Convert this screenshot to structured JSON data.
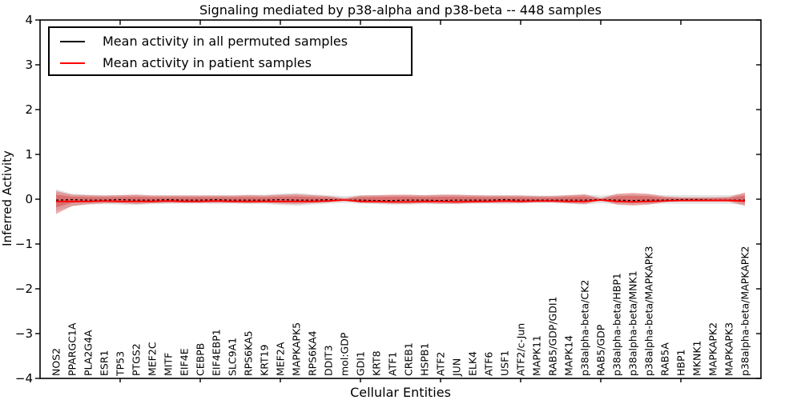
{
  "figure": {
    "title": "Signaling mediated by p38-alpha and p38-beta -- 448 samples",
    "xlabel": "Cellular Entities",
    "ylabel": "Inferred Activity"
  },
  "legend": {
    "entries": [
      {
        "label": "Mean activity in all permuted samples",
        "color": "#000000"
      },
      {
        "label": "Mean activity in patient samples",
        "color": "#ff0000"
      }
    ]
  },
  "chart_data": {
    "type": "line",
    "title": "Signaling mediated by p38-alpha and p38-beta -- 448 samples",
    "xlabel": "Cellular Entities",
    "ylabel": "Inferred Activity",
    "ylim": [
      -4,
      4
    ],
    "xlim": [
      0,
      45
    ],
    "yticks": [
      4,
      3,
      2,
      1,
      0,
      -1,
      -2,
      -3,
      -4
    ],
    "xtick_units": [
      5,
      10,
      15,
      20,
      25,
      30,
      35,
      40
    ],
    "grid": false,
    "legend_position": "upper left",
    "categories": [
      "NOS2",
      "PPARGC1A",
      "PLA2G4A",
      "ESR1",
      "TP53",
      "PTGS2",
      "MEF2C",
      "MITF",
      "EIF4E",
      "CEBPB",
      "EIF4EBP1",
      "SLC9A1",
      "RPS6KA5",
      "KRT19",
      "MEF2A",
      "MAPKAPK5",
      "RPS6KA4",
      "DDIT3",
      "mol:GDP",
      "GDI1",
      "KRT8",
      "ATF1",
      "CREB1",
      "HSPB1",
      "ATF2",
      "JUN",
      "ELK4",
      "ATF6",
      "USF1",
      "ATF2/c-Jun",
      "MAPK11",
      "RAB5/GDP/GDI1",
      "MAPK14",
      "p38alpha-beta/CK2",
      "RAB5/GDP",
      "p38alpha-beta/HBP1",
      "p38alpha-beta/MNK1",
      "p38alpha-beta/MAPKAPK3",
      "RAB5A",
      "HBP1",
      "MKNK1",
      "MAPKAPK2",
      "MAPKAPK3",
      "p38alpha-beta/MAPKAPK2"
    ],
    "series": [
      {
        "name": "Mean activity in all permuted samples",
        "color": "#000000",
        "style": "dashed",
        "values": [
          -0.02,
          -0.01,
          -0.02,
          -0.02,
          -0.01,
          -0.02,
          -0.02,
          -0.01,
          -0.02,
          -0.02,
          -0.01,
          -0.02,
          -0.02,
          -0.02,
          -0.01,
          -0.02,
          -0.02,
          -0.01,
          -0.02,
          -0.02,
          -0.03,
          -0.03,
          -0.02,
          -0.02,
          -0.03,
          -0.02,
          -0.02,
          -0.02,
          -0.01,
          -0.02,
          -0.02,
          -0.02,
          -0.02,
          -0.02,
          -0.01,
          -0.02,
          -0.03,
          -0.02,
          -0.02,
          -0.01,
          -0.01,
          -0.02,
          -0.02,
          -0.02
        ]
      },
      {
        "name": "Mean activity in patient samples",
        "color": "#ff0000",
        "style": "solid",
        "values": [
          -0.05,
          -0.05,
          -0.05,
          -0.04,
          -0.05,
          -0.05,
          -0.05,
          -0.04,
          -0.05,
          -0.05,
          -0.04,
          -0.05,
          -0.05,
          -0.05,
          -0.05,
          -0.05,
          -0.05,
          -0.04,
          -0.02,
          -0.05,
          -0.05,
          -0.06,
          -0.06,
          -0.05,
          -0.05,
          -0.06,
          -0.05,
          -0.05,
          -0.04,
          -0.05,
          -0.04,
          -0.04,
          -0.05,
          -0.05,
          -0.02,
          -0.05,
          -0.06,
          -0.05,
          -0.04,
          -0.03,
          -0.03,
          -0.03,
          -0.03,
          -0.04
        ]
      }
    ],
    "bands": [
      {
        "name": "permuted-activity-range",
        "color": "rgba(110,110,110,0.20)",
        "hi": [
          0.22,
          0.12,
          0.1,
          0.09,
          0.09,
          0.1,
          0.09,
          0.09,
          0.09,
          0.09,
          0.09,
          0.09,
          0.1,
          0.1,
          0.12,
          0.14,
          0.11,
          0.09,
          0.07,
          0.09,
          0.09,
          0.09,
          0.09,
          0.09,
          0.1,
          0.1,
          0.09,
          0.09,
          0.09,
          0.09,
          0.08,
          0.08,
          0.09,
          0.1,
          0.08,
          0.1,
          0.11,
          0.1,
          0.09,
          0.09,
          0.09,
          0.09,
          0.09,
          0.12
        ],
        "lo": [
          -0.26,
          -0.16,
          -0.12,
          -0.11,
          -0.12,
          -0.13,
          -0.11,
          -0.1,
          -0.1,
          -0.1,
          -0.1,
          -0.1,
          -0.11,
          -0.11,
          -0.13,
          -0.15,
          -0.12,
          -0.1,
          -0.08,
          -0.1,
          -0.11,
          -0.12,
          -0.12,
          -0.11,
          -0.11,
          -0.11,
          -0.1,
          -0.1,
          -0.1,
          -0.1,
          -0.09,
          -0.09,
          -0.1,
          -0.12,
          -0.09,
          -0.11,
          -0.12,
          -0.11,
          -0.1,
          -0.1,
          -0.1,
          -0.1,
          -0.1,
          -0.13
        ]
      },
      {
        "name": "patient-activity-range",
        "color": "rgba(214,39,40,0.38)",
        "inner_scale": 0.55,
        "hi": [
          0.18,
          0.1,
          0.09,
          0.08,
          0.09,
          0.1,
          0.08,
          0.08,
          0.08,
          0.08,
          0.08,
          0.08,
          0.09,
          0.08,
          0.1,
          0.11,
          0.09,
          0.07,
          0.02,
          0.08,
          0.09,
          0.1,
          0.1,
          0.09,
          0.1,
          0.1,
          0.09,
          0.08,
          0.08,
          0.08,
          0.07,
          0.07,
          0.09,
          0.11,
          0.02,
          0.12,
          0.14,
          0.12,
          0.06,
          0.04,
          0.04,
          0.04,
          0.05,
          0.15
        ],
        "lo": [
          -0.33,
          -0.15,
          -0.11,
          -0.09,
          -0.09,
          -0.11,
          -0.09,
          -0.08,
          -0.08,
          -0.08,
          -0.08,
          -0.08,
          -0.09,
          -0.08,
          -0.1,
          -0.11,
          -0.09,
          -0.07,
          -0.02,
          -0.08,
          -0.09,
          -0.1,
          -0.1,
          -0.09,
          -0.1,
          -0.1,
          -0.09,
          -0.08,
          -0.08,
          -0.08,
          -0.07,
          -0.07,
          -0.09,
          -0.11,
          -0.02,
          -0.12,
          -0.14,
          -0.12,
          -0.06,
          -0.04,
          -0.04,
          -0.04,
          -0.05,
          -0.15
        ]
      }
    ]
  }
}
